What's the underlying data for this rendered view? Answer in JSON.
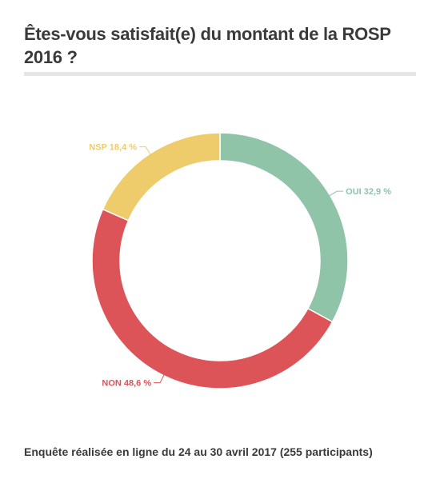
{
  "title": "Êtes-vous satisfait(e) du montant de la ROSP 2016 ?",
  "footnote": "Enquête réalisée en ligne du 24 au 30 avril 2017 (255 participants)",
  "chart_data": {
    "type": "pie",
    "donut": true,
    "title": "Êtes-vous satisfait(e) du montant de la ROSP 2016 ?",
    "slices": [
      {
        "category": "OUI",
        "value": 32.9,
        "label": "OUI 32,9 %",
        "color": "#8fc4a8"
      },
      {
        "category": "NON",
        "value": 48.6,
        "label": "NON 48,6 %",
        "color": "#dc5457"
      },
      {
        "category": "NSP",
        "value": 18.4,
        "label": "NSP 18,4 %",
        "color": "#efcc6b"
      }
    ],
    "start": "top",
    "direction": "clockwise",
    "legend": "none"
  }
}
